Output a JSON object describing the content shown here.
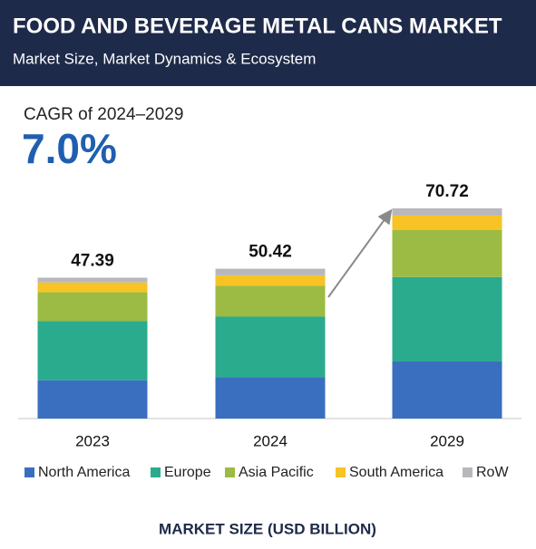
{
  "header": {
    "title": "FOOD AND BEVERAGE METAL CANS MARKET",
    "subtitle": "Market Size, Market Dynamics & Ecosystem"
  },
  "cagr": {
    "label": "CAGR of 2024–2029",
    "value": "7.0%"
  },
  "chart_data": {
    "type": "bar",
    "stacked": true,
    "categories": [
      "2023",
      "2024",
      "2029"
    ],
    "totals": [
      47.39,
      50.42,
      70.72
    ],
    "series": [
      {
        "name": "North America",
        "color": "#3a6fc0",
        "values": [
          12.9,
          13.9,
          19.2
        ]
      },
      {
        "name": "Europe",
        "color": "#2bab8e",
        "values": [
          19.9,
          20.4,
          28.4
        ]
      },
      {
        "name": "Asia Pacific",
        "color": "#9cbb44",
        "values": [
          9.7,
          10.4,
          15.8
        ]
      },
      {
        "name": "South America",
        "color": "#f7c325",
        "values": [
          3.3,
          3.5,
          4.9
        ]
      },
      {
        "name": "RoW",
        "color": "#b8b8bc",
        "values": [
          1.59,
          2.22,
          2.42
        ]
      }
    ],
    "xlabel": "MARKET SIZE (USD BILLION)"
  }
}
